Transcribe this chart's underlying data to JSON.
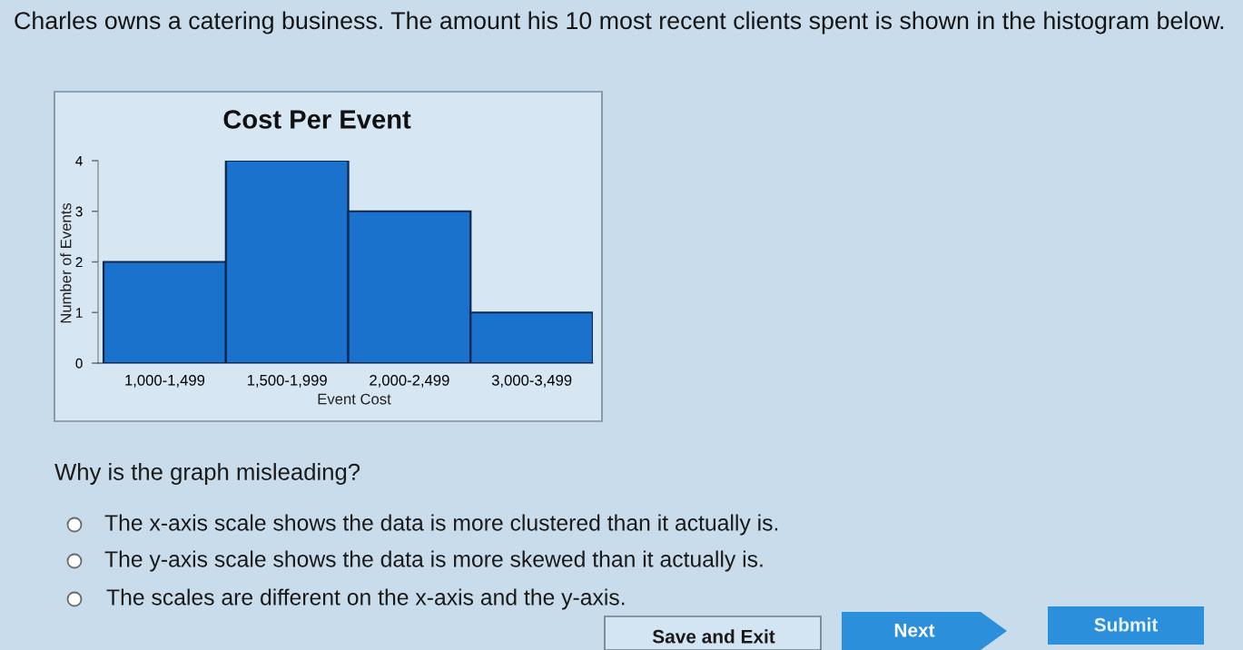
{
  "chart_data": {
    "type": "bar",
    "title": "Cost Per Event",
    "xlabel": "Event Cost",
    "ylabel": "Number of Events",
    "categories": [
      "1,000-1,499",
      "1,500-1,999",
      "2,000-2,499",
      "3,000-3,499"
    ],
    "values": [
      2,
      4,
      3,
      1
    ],
    "color": "#1a72cc",
    "ylim": [
      0,
      4
    ],
    "yticks": [
      0,
      1,
      2,
      3,
      4
    ],
    "annotations": [
      "Charles owns a catering business. The amount his 10 most recent clients spent is shown in the histogram below.",
      "Why is the graph misleading?",
      "The x-axis scale shows the data is more clustered than it actually is.",
      "The y-axis scale shows the data is more skewed than it actually is.",
      "The scales are different on the x-axis and the y-axis.",
      "Save and Exit",
      "Next",
      "Submit"
    ]
  }
}
